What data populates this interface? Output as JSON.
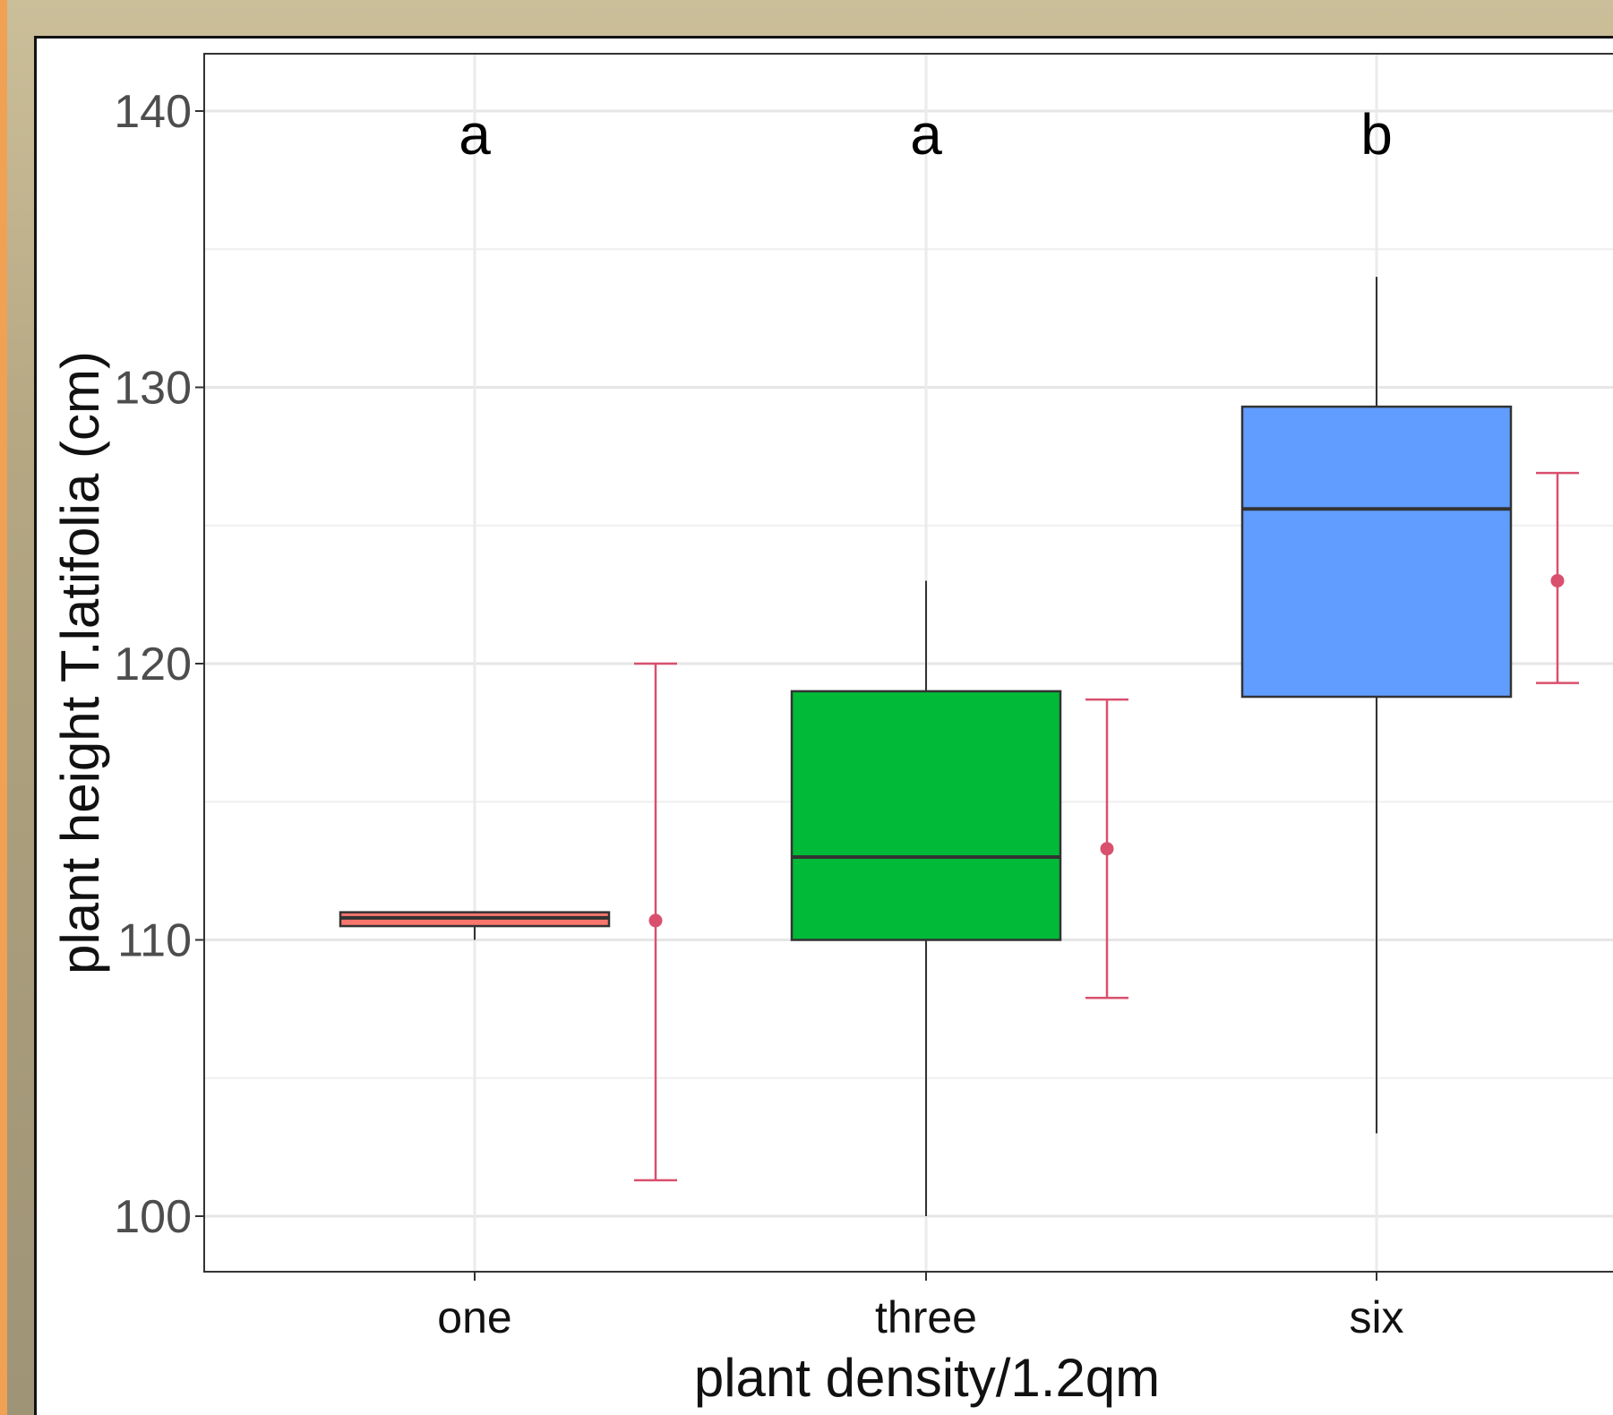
{
  "chart_data": {
    "type": "boxplot",
    "xlabel": "plant density/1.2qm",
    "ylabel": "plant height T.latifolia (cm)",
    "ylim": [
      98,
      142
    ],
    "yticks": [
      100,
      110,
      120,
      130,
      140
    ],
    "grid": true,
    "categories": [
      "one",
      "three",
      "six"
    ],
    "significance_letters": [
      "a",
      "a",
      "b"
    ],
    "boxes": [
      {
        "category": "one",
        "whisker_low": 110,
        "q1": 110.5,
        "median": 110.8,
        "q3": 111,
        "whisker_high": 111,
        "fill": "#f8766d"
      },
      {
        "category": "three",
        "whisker_low": 100,
        "q1": 110,
        "median": 113,
        "q3": 119,
        "whisker_high": 123,
        "fill": "#00ba38"
      },
      {
        "category": "six",
        "whisker_low": 103,
        "q1": 118.8,
        "median": 125.6,
        "q3": 129.3,
        "whisker_high": 134,
        "fill": "#619cff"
      }
    ],
    "mean_errorbars": [
      {
        "category": "one",
        "mean": 110.7,
        "lower": 101.3,
        "upper": 120.0
      },
      {
        "category": "three",
        "mean": 113.3,
        "lower": 107.9,
        "upper": 118.7
      },
      {
        "category": "six",
        "mean": 123.0,
        "lower": 119.3,
        "upper": 126.9
      }
    ],
    "errorbar_color": "#d9506e"
  }
}
